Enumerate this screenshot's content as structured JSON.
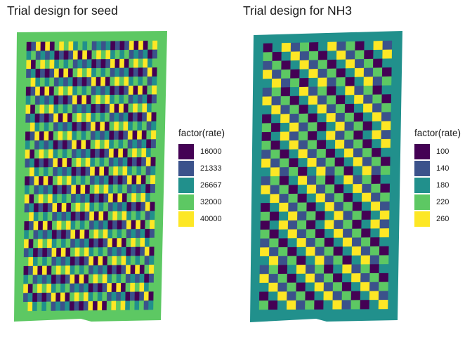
{
  "chart_data": [
    {
      "type": "heatmap",
      "title": "Trial design for seed",
      "legend_title": "factor(rate)",
      "legend_position": "right",
      "grid": false,
      "levels": [
        "16000",
        "21333",
        "26667",
        "32000",
        "40000"
      ],
      "colors": [
        "#440154",
        "#3B528B",
        "#21908C",
        "#5DC863",
        "#FDE725"
      ],
      "border_level": "32000",
      "cols": 28,
      "rows": 30
    },
    {
      "type": "heatmap",
      "title": "Trial design for NH3",
      "legend_title": "factor(rate)",
      "legend_position": "right",
      "grid": false,
      "levels": [
        "100",
        "140",
        "180",
        "220",
        "260"
      ],
      "colors": [
        "#440154",
        "#3B528B",
        "#21908C",
        "#5DC863",
        "#FDE725"
      ],
      "border_level": "180",
      "cols": 14,
      "rows": 30
    }
  ]
}
